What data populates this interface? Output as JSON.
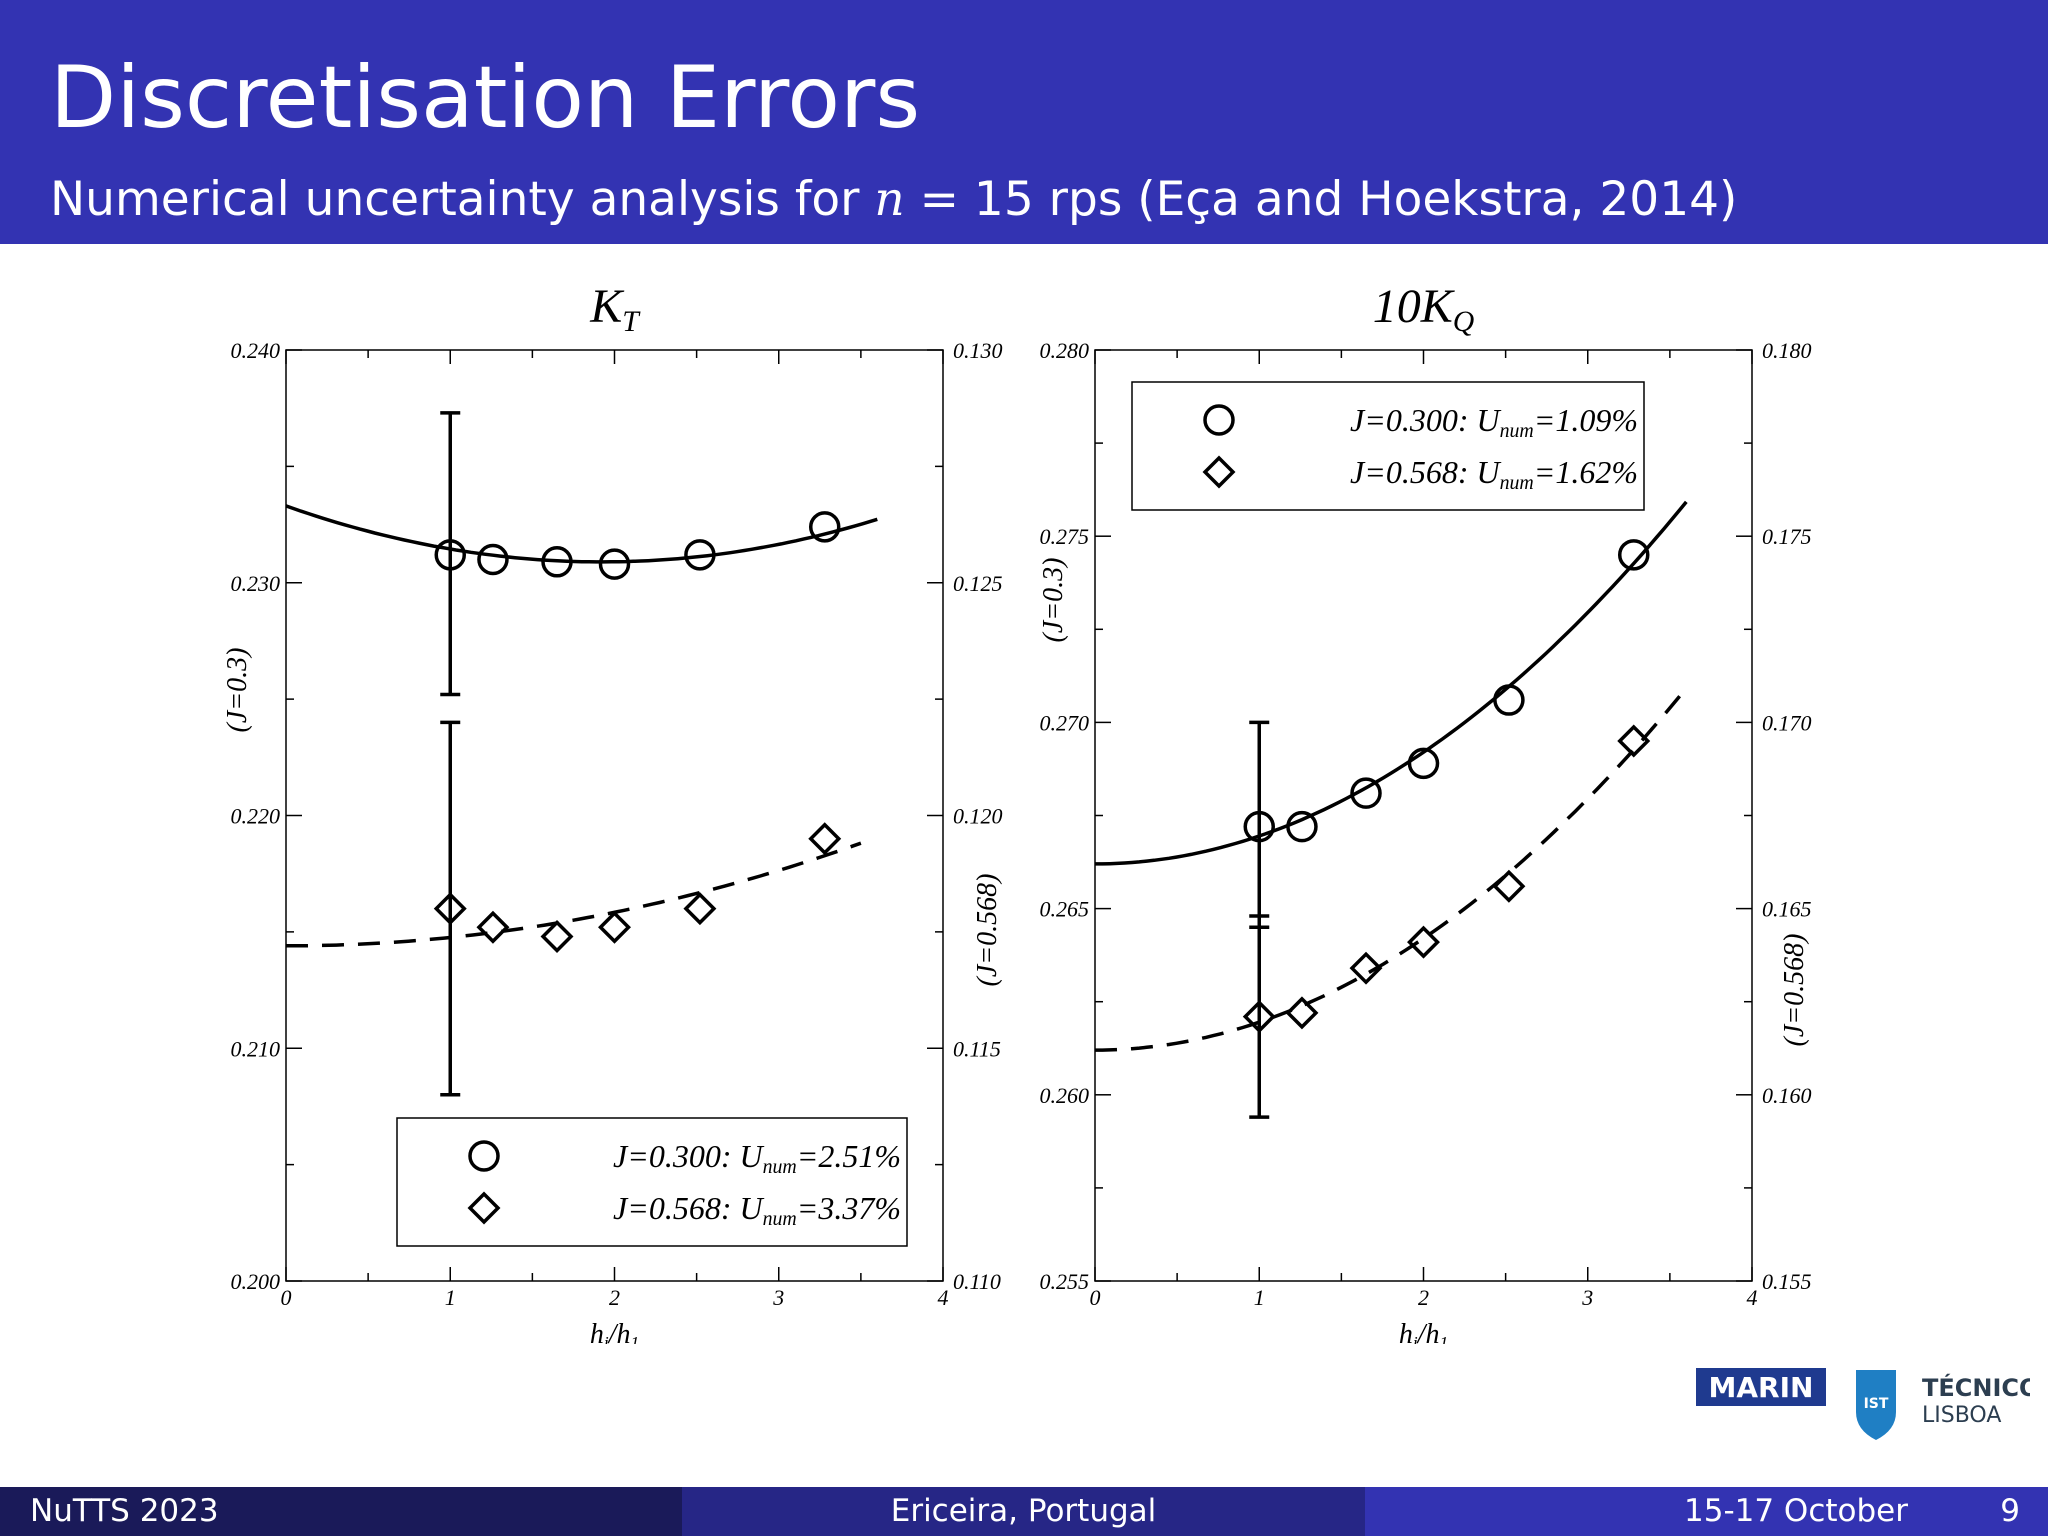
{
  "slide": {
    "title": "Discretisation Errors",
    "subtitle_prefix": "Numerical uncertainty analysis for ",
    "subtitle_math": "n",
    "subtitle_suffix": " = 15 rps (Eça and Hoekstra, 2014)"
  },
  "footer": {
    "left": "NuTTS 2023",
    "center": "Ericeira, Portugal",
    "date": "15-17 October",
    "page": "9"
  },
  "logos": {
    "marin": "MARIN",
    "ist_mark": "IST",
    "tecnico": "TÉCNICO",
    "lisboa": "LISBOA",
    "marin_color": "#1f3a8f",
    "ist_color": "#1f7fc4"
  },
  "chart_data": [
    {
      "type": "scatter",
      "title": "K",
      "title_sub": "T",
      "xlabel": "h",
      "xlabel_sub1": "i",
      "xlabel_mid": "/h",
      "xlabel_sub2": "1",
      "xlim": [
        0,
        4
      ],
      "x_ticks": [
        "0",
        "1",
        "2",
        "3",
        "4"
      ],
      "ylim_left": [
        0.2,
        0.24
      ],
      "y_ticks_left": [
        "0.200",
        "0.210",
        "0.220",
        "0.230",
        "0.240"
      ],
      "ylim_right": [
        0.11,
        0.13
      ],
      "y_ticks_right": [
        "0.110",
        "0.115",
        "0.120",
        "0.125",
        "0.130"
      ],
      "ylabel_left": "(J=0.3)",
      "ylabel_right": "(J=0.568)",
      "legend_position": "bottom-right",
      "series": [
        {
          "name": "J=0.300: U",
          "name_sub": "num",
          "name_tail": "=2.51%",
          "axis": "left",
          "marker": "circle",
          "x": [
            1.0,
            1.26,
            1.65,
            2.0,
            2.52,
            3.28
          ],
          "y": [
            0.2312,
            0.231,
            0.2309,
            0.2308,
            0.2312,
            0.2324
          ],
          "fit": {
            "style": "solid",
            "x_range": [
              0,
              3.6
            ],
            "a": 0.2333,
            "b": -0.0025,
            "c": 0.00065
          },
          "error_bar": {
            "x": 1.0,
            "low": 0.2252,
            "high": 0.2373
          }
        },
        {
          "name": "J=0.568: U",
          "name_sub": "num",
          "name_tail": "=3.37%",
          "axis": "right",
          "marker": "diamond",
          "x": [
            1.0,
            1.26,
            1.65,
            2.0,
            2.52,
            3.28
          ],
          "y": [
            0.118,
            0.1176,
            0.1174,
            0.1176,
            0.118,
            0.1195
          ],
          "fit": {
            "style": "dashed",
            "x_range": [
              0,
              3.5
            ],
            "a": 0.1172,
            "b": 0.0,
            "c": 0.00018
          },
          "error_bar": {
            "x": 1.0,
            "low": 0.114,
            "high": 0.122
          }
        }
      ]
    },
    {
      "type": "scatter",
      "title": "10K",
      "title_sub": "Q",
      "xlabel": "h",
      "xlabel_sub1": "i",
      "xlabel_mid": "/h",
      "xlabel_sub2": "1",
      "xlim": [
        0,
        4
      ],
      "x_ticks": [
        "0",
        "1",
        "2",
        "3",
        "4"
      ],
      "ylim_left": [
        0.255,
        0.28
      ],
      "y_ticks_left": [
        "0.255",
        "0.260",
        "0.265",
        "0.270",
        "0.275",
        "0.280"
      ],
      "ylim_right": [
        0.155,
        0.18
      ],
      "y_ticks_right": [
        "0.155",
        "0.160",
        "0.165",
        "0.170",
        "0.175",
        "0.180"
      ],
      "ylabel_left": "(J=0.3)",
      "ylabel_right": "(J=0.568)",
      "legend_position": "top-left",
      "series": [
        {
          "name": "J=0.300: U",
          "name_sub": "num",
          "name_tail": "=1.09%",
          "axis": "left",
          "marker": "circle",
          "x": [
            1.0,
            1.26,
            1.65,
            2.0,
            2.52,
            3.28
          ],
          "y": [
            0.2672,
            0.2672,
            0.2681,
            0.2689,
            0.2706,
            0.2745
          ],
          "fit": {
            "style": "solid",
            "x_range": [
              0,
              3.6
            ],
            "a": 0.2662,
            "b": 0.0,
            "c": 0.00075
          },
          "error_bar": {
            "x": 1.0,
            "low": 0.2645,
            "high": 0.27
          }
        },
        {
          "name": "J=0.568: U",
          "name_sub": "num",
          "name_tail": "=1.62%",
          "axis": "right",
          "marker": "diamond",
          "x": [
            1.0,
            1.26,
            1.65,
            2.0,
            2.52,
            3.28
          ],
          "y": [
            0.1621,
            0.1622,
            0.1634,
            0.1641,
            0.1656,
            0.1695
          ],
          "fit": {
            "style": "dashed",
            "x_range": [
              0,
              3.6
            ],
            "a": 0.1612,
            "b": 0.0,
            "c": 0.00075
          },
          "error_bar": {
            "x": 1.0,
            "low": 0.1594,
            "high": 0.1648
          }
        }
      ]
    }
  ]
}
